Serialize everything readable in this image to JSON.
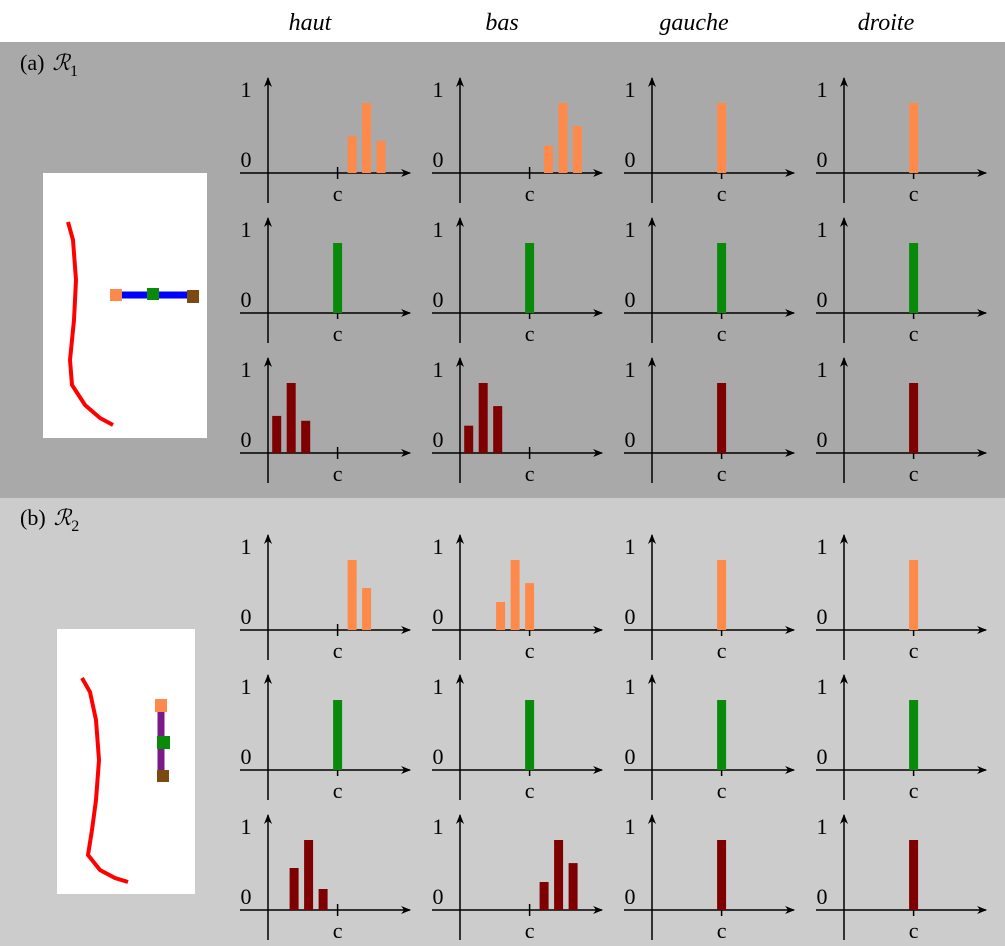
{
  "column_headers": [
    "haut",
    "bas",
    "gauche",
    "droite"
  ],
  "axes": {
    "xlim": [
      -4.8,
      5
    ],
    "ylim": [
      0,
      1
    ],
    "yticks": [
      0,
      1
    ],
    "xticks": [
      {
        "value": 0,
        "label": "c"
      }
    ]
  },
  "panels": [
    {
      "label": "(a)",
      "symbol": "ℛ",
      "subscript": "1",
      "rows": [
        {
          "color": "#fd8a4b",
          "charts": [
            {
              "x": [
                1,
                2,
                3
              ],
              "values": [
                0.53,
                1,
                0.46
              ]
            },
            {
              "x": [
                1.3,
                2.3,
                3.3
              ],
              "values": [
                0.39,
                1,
                0.67
              ]
            },
            {
              "x": [
                0
              ],
              "values": [
                1
              ]
            },
            {
              "x": [
                0
              ],
              "values": [
                1
              ]
            }
          ]
        },
        {
          "color": "#0a8a0a",
          "charts": [
            {
              "x": [
                0
              ],
              "values": [
                1
              ]
            },
            {
              "x": [
                0
              ],
              "values": [
                1
              ]
            },
            {
              "x": [
                0
              ],
              "values": [
                1
              ]
            },
            {
              "x": [
                0
              ],
              "values": [
                1
              ]
            }
          ]
        },
        {
          "color": "#7f0000",
          "charts": [
            {
              "x": [
                -4.2,
                -3.2,
                -2.2
              ],
              "values": [
                0.53,
                1,
                0.46
              ]
            },
            {
              "x": [
                -4.2,
                -3.2,
                -2.2
              ],
              "values": [
                0.39,
                1,
                0.67
              ]
            },
            {
              "x": [
                0
              ],
              "values": [
                1
              ]
            },
            {
              "x": [
                0
              ],
              "values": [
                1
              ]
            }
          ]
        }
      ]
    },
    {
      "label": "(b)",
      "symbol": "ℛ",
      "subscript": "2",
      "rows": [
        {
          "color": "#fd8a4b",
          "charts": [
            {
              "x": [
                1,
                2
              ],
              "values": [
                1,
                0.6
              ]
            },
            {
              "x": [
                -2,
                -1,
                0
              ],
              "values": [
                0.4,
                1,
                0.67
              ]
            },
            {
              "x": [
                0
              ],
              "values": [
                1
              ]
            },
            {
              "x": [
                0
              ],
              "values": [
                1
              ]
            }
          ]
        },
        {
          "color": "#0a8a0a",
          "charts": [
            {
              "x": [
                0
              ],
              "values": [
                1
              ]
            },
            {
              "x": [
                0
              ],
              "values": [
                1
              ]
            },
            {
              "x": [
                0
              ],
              "values": [
                1
              ]
            },
            {
              "x": [
                0
              ],
              "values": [
                1
              ]
            }
          ]
        },
        {
          "color": "#7f0000",
          "charts": [
            {
              "x": [
                -3,
                -2,
                -1
              ],
              "values": [
                0.6,
                1,
                0.3
              ]
            },
            {
              "x": [
                1,
                2,
                3
              ],
              "values": [
                0.4,
                1,
                0.67
              ]
            },
            {
              "x": [
                0
              ],
              "values": [
                1
              ]
            },
            {
              "x": [
                0
              ],
              "values": [
                1
              ]
            }
          ]
        }
      ]
    }
  ]
}
